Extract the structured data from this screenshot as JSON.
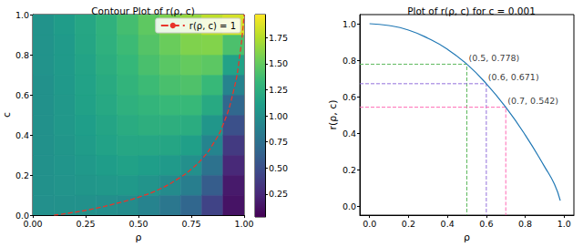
{
  "chart_data": [
    {
      "type": "heatmap",
      "title": "Contour Plot of r(ρ, c)",
      "x_label": "ρ",
      "y_label": "c",
      "xlim": [
        0,
        1
      ],
      "ylim": [
        0,
        1
      ],
      "xticks": [
        {
          "value": 0,
          "label": "0.00"
        },
        0.25,
        {
          "value": 0.5,
          "label": "0.50"
        },
        0.75,
        {
          "value": 1,
          "label": "1.00"
        }
      ],
      "yticks": [
        {
          "value": 0,
          "label": "0.0"
        },
        0.2,
        0.4,
        0.6,
        0.8,
        {
          "value": 1,
          "label": "1.0"
        }
      ],
      "x_edges": [
        0,
        0.1,
        0.2,
        0.3,
        0.4,
        0.5,
        0.6,
        0.7,
        0.8,
        0.9,
        1
      ],
      "y_edges": [
        0,
        0.1,
        0.2,
        0.3,
        0.4,
        0.5,
        0.6,
        0.7,
        0.8,
        0.9,
        1
      ],
      "cells": [
        [
          1.0,
          1.01,
          1.01,
          0.99,
          0.97,
          0.9,
          0.8,
          0.67,
          0.42,
          0.13
        ],
        [
          1.01,
          1.03,
          1.05,
          1.06,
          1.07,
          1.03,
          0.96,
          0.86,
          0.6,
          0.17
        ],
        [
          1.01,
          1.04,
          1.07,
          1.1,
          1.13,
          1.11,
          1.08,
          1.0,
          0.76,
          0.25
        ],
        [
          1.01,
          1.05,
          1.09,
          1.14,
          1.18,
          1.18,
          1.17,
          1.12,
          0.91,
          0.36
        ],
        [
          1.01,
          1.06,
          1.11,
          1.16,
          1.22,
          1.25,
          1.25,
          1.23,
          1.05,
          0.51
        ],
        [
          1.01,
          1.06,
          1.13,
          1.19,
          1.26,
          1.3,
          1.33,
          1.33,
          1.2,
          0.68
        ],
        [
          1.01,
          1.07,
          1.14,
          1.21,
          1.29,
          1.35,
          1.4,
          1.42,
          1.33,
          0.9
        ],
        [
          1.02,
          1.08,
          1.15,
          1.24,
          1.32,
          1.4,
          1.46,
          1.5,
          1.47,
          1.14
        ],
        [
          1.02,
          1.08,
          1.17,
          1.26,
          1.35,
          1.44,
          1.52,
          1.59,
          1.6,
          1.41
        ],
        [
          1.02,
          1.09,
          1.18,
          1.27,
          1.38,
          1.48,
          1.58,
          1.66,
          1.78,
          1.85
        ]
      ],
      "colorbar_range": [
        0.03,
        1.97
      ],
      "colorbar_ticks": [
        0.25,
        {
          "value": 0.5,
          "label": "0.50"
        },
        0.75,
        {
          "value": 1,
          "label": "1.00"
        },
        1.25,
        {
          "value": 1.5,
          "label": "1.50"
        },
        1.75
      ],
      "series": [
        {
          "name": "r(ρ, c) = 1",
          "type": "line",
          "color": "#e8352b",
          "line_style": "dashed",
          "x": [
            0.1,
            0.2,
            0.3,
            0.4,
            0.5,
            0.6,
            0.7,
            0.75,
            0.8,
            0.85,
            0.9,
            0.95,
            0.98,
            1.0
          ],
          "values": [
            0,
            0.015,
            0.035,
            0.06,
            0.09,
            0.13,
            0.19,
            0.23,
            0.28,
            0.35,
            0.45,
            0.62,
            0.8,
            1.0
          ]
        }
      ],
      "legend": "upper right"
    },
    {
      "type": "line",
      "title": "Plot of r(ρ, c) for c = 0.001",
      "x_label": "ρ",
      "y_label": "r(ρ, c)",
      "xlim": [
        -0.05,
        1.05
      ],
      "ylim": [
        -0.05,
        1.05
      ],
      "xticks": [
        {
          "value": 0,
          "label": "0.0"
        },
        0.2,
        0.4,
        0.6,
        0.8,
        {
          "value": 1,
          "label": "1.0"
        }
      ],
      "yticks": [
        {
          "value": 0,
          "label": "0.0"
        },
        0.2,
        0.4,
        0.6,
        0.8,
        {
          "value": 1,
          "label": "1.0"
        }
      ],
      "series": [
        {
          "color": "#1f77b4",
          "line_style": "solid",
          "x": [
            0,
            0.1,
            0.2,
            0.3,
            0.4,
            0.5,
            0.6,
            0.7,
            0.8,
            0.9,
            0.95,
            0.98
          ],
          "values": [
            1.0,
            0.99,
            0.965,
            0.92,
            0.86,
            0.778,
            0.671,
            0.542,
            0.39,
            0.215,
            0.12,
            0.03
          ]
        }
      ],
      "annotations": [
        {
          "x": 0.5,
          "y": 0.778,
          "label": "(0.5, 0.778)",
          "color": "#5cb85c",
          "line_style": "dashed"
        },
        {
          "x": 0.6,
          "y": 0.671,
          "label": "(0.6, 0.671)",
          "color": "#9370db",
          "line_style": "dashed"
        },
        {
          "x": 0.7,
          "y": 0.542,
          "label": "(0.7, 0.542)",
          "color": "#ff69b4",
          "line_style": "dashed"
        }
      ]
    }
  ]
}
